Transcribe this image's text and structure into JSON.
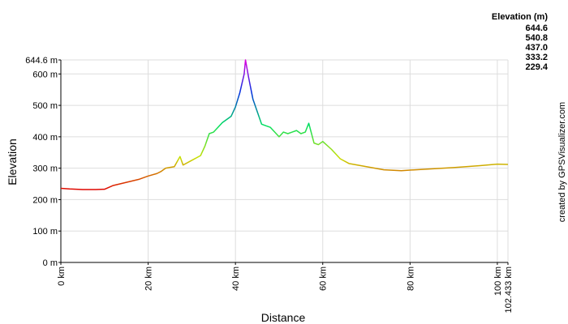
{
  "chart_data": {
    "type": "line",
    "xlabel": "Distance",
    "ylabel": "Elevation",
    "credit": "created by GPSVisualizer.com",
    "legend_title": "Elevation (m)",
    "color_scale": {
      "values": [
        644.6,
        540.8,
        437.0,
        333.2,
        229.4
      ],
      "value_labels": [
        "644.6",
        "540.8",
        "437.0",
        "333.2",
        "229.4"
      ],
      "colors": [
        "#e000e0",
        "#0030e0",
        "#00e060",
        "#c8e000",
        "#e00000"
      ]
    },
    "x": [
      0,
      2,
      5,
      8,
      10,
      12,
      15,
      18,
      20,
      22,
      23,
      24,
      26,
      27.3,
      28,
      30,
      32,
      33,
      34,
      35,
      37,
      39,
      40,
      41,
      42,
      42.3,
      43,
      44,
      45,
      46,
      47,
      48,
      50,
      51,
      52,
      53,
      54,
      55,
      56,
      56.8,
      58,
      59,
      60,
      62,
      64,
      66,
      70,
      74,
      78,
      80,
      84,
      90,
      96,
      100,
      102.433
    ],
    "values": [
      236,
      234,
      232,
      232,
      233,
      245,
      255,
      265,
      275,
      283,
      290,
      300,
      305,
      337,
      310,
      325,
      340,
      370,
      410,
      415,
      445,
      465,
      495,
      540,
      600,
      644.6,
      590,
      520,
      480,
      440,
      435,
      430,
      400,
      415,
      410,
      415,
      420,
      410,
      415,
      443,
      380,
      375,
      385,
      360,
      330,
      315,
      305,
      295,
      292,
      294,
      297,
      302,
      308,
      313,
      312
    ],
    "xlim": [
      0,
      102.433
    ],
    "ylim": [
      0,
      644.6
    ],
    "xticks": [
      {
        "value": 0,
        "label": "0 km"
      },
      {
        "value": 20,
        "label": "20 km"
      },
      {
        "value": 40,
        "label": "40 km"
      },
      {
        "value": 60,
        "label": "60 km"
      },
      {
        "value": 80,
        "label": "80 km"
      },
      {
        "value": 100,
        "label": "100 km"
      },
      {
        "value": 102.433,
        "label": "102.433 km"
      }
    ],
    "yticks": [
      {
        "value": 0,
        "label": "0 m"
      },
      {
        "value": 100,
        "label": "100 m"
      },
      {
        "value": 200,
        "label": "200 m"
      },
      {
        "value": 300,
        "label": "300 m"
      },
      {
        "value": 400,
        "label": "400 m"
      },
      {
        "value": 500,
        "label": "500 m"
      },
      {
        "value": 600,
        "label": "600 m"
      },
      {
        "value": 644.6,
        "label": "644.6 m"
      }
    ],
    "grid": true
  }
}
